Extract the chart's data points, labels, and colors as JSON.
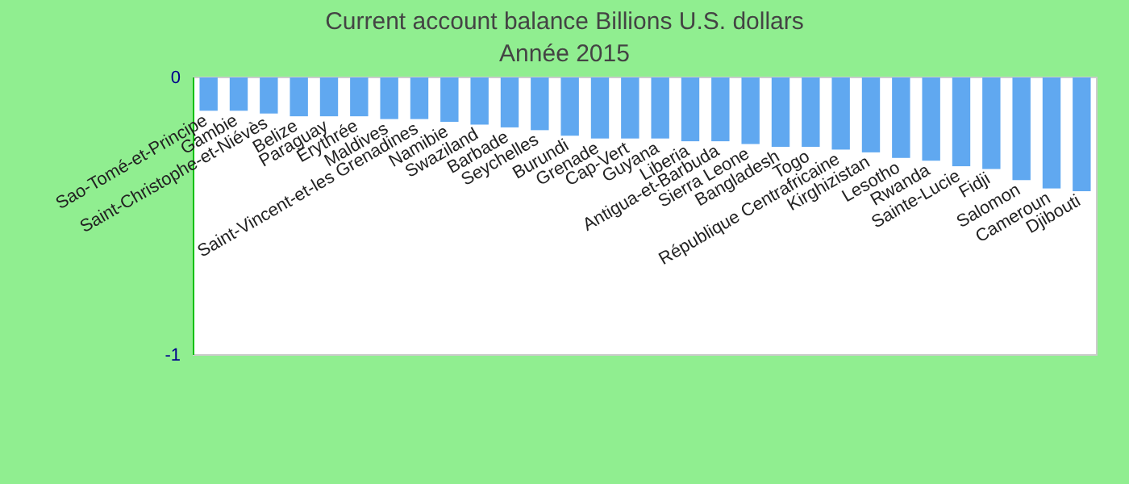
{
  "chart_data": {
    "type": "bar",
    "title": "Current account balance Billions U.S. dollars",
    "subtitle": "Année 2015",
    "categories": [
      "Sao-Tomé-et-Principe",
      "Gambie",
      "Saint-Christophe-et-Niévès",
      "Belize",
      "Paraguay",
      "Erythrée",
      "Maldives",
      "Saint-Vincent-et-les Grenadines",
      "Namibie",
      "Swaziland",
      "Barbade",
      "Seychelles",
      "Burundi",
      "Grenade",
      "Cap-Vert",
      "Guyana",
      "Liberia",
      "Antigua-et-Barbuda",
      "Sierra Leone",
      "Bangladesh",
      "Togo",
      "République Centrafricaine",
      "Kirghizistan",
      "Lesotho",
      "Rwanda",
      "Sainte-Lucie",
      "Fidji",
      "Salomon",
      "Cameroun",
      "Djibouti"
    ],
    "values": [
      -0.12,
      -0.12,
      -0.13,
      -0.14,
      -0.14,
      -0.14,
      -0.15,
      -0.15,
      -0.16,
      -0.17,
      -0.18,
      -0.19,
      -0.21,
      -0.22,
      -0.22,
      -0.22,
      -0.23,
      -0.23,
      -0.24,
      -0.25,
      -0.25,
      -0.26,
      -0.27,
      -0.29,
      -0.3,
      -0.32,
      -0.33,
      -0.37,
      -0.4,
      -0.41
    ],
    "color": "#60a8f0",
    "ylim": [
      -1,
      0
    ],
    "yticks": [
      0,
      -1
    ],
    "grid": false
  }
}
